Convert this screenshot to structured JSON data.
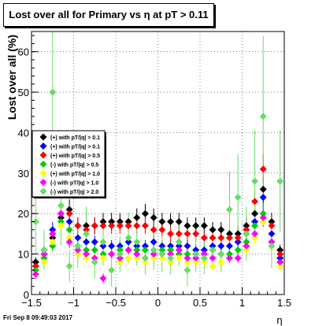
{
  "chart_data": {
    "type": "scatter",
    "title": "Lost over all for Primary vs   η at pT > 0.11",
    "xlabel": "η",
    "ylabel": "Lost over all (%)",
    "xlim": [
      -1.5,
      1.5
    ],
    "ylim": [
      0,
      65
    ],
    "x_ticks": [
      -1.5,
      -1,
      -0.5,
      0,
      0.5,
      1,
      1.5
    ],
    "x_tick_labels": [
      "−1.5",
      "−1",
      "−0.5",
      "0",
      "0.5",
      "1",
      "1.5"
    ],
    "y_ticks": [
      0,
      10,
      20,
      30,
      40,
      50,
      60
    ],
    "grid": true,
    "legend_position": "left-middle",
    "series": [
      {
        "name": "(+) with pT/|q| > 0.1",
        "color": "#000000",
        "marker": "diamond",
        "x": [
          -1.45,
          -1.35,
          -1.25,
          -1.15,
          -1.05,
          -0.95,
          -0.85,
          -0.75,
          -0.65,
          -0.55,
          -0.45,
          -0.35,
          -0.25,
          -0.15,
          -0.05,
          0.05,
          0.15,
          0.25,
          0.35,
          0.45,
          0.55,
          0.65,
          0.75,
          0.85,
          0.95,
          1.05,
          1.15,
          1.25,
          1.35,
          1.45
        ],
        "y": [
          8,
          10,
          14,
          19,
          21,
          17,
          17,
          17,
          18,
          18,
          18,
          18,
          19,
          20,
          19,
          18,
          18,
          18,
          17,
          17,
          17,
          16,
          16,
          15,
          15,
          17,
          20,
          26,
          18,
          11
        ]
      },
      {
        "name": "(+) with pT/|q| > 0.1",
        "color": "#0000ff",
        "marker": "diamond",
        "x": [
          -1.45,
          -1.35,
          -1.25,
          -1.15,
          -1.05,
          -0.95,
          -0.85,
          -0.75,
          -0.65,
          -0.55,
          -0.45,
          -0.35,
          -0.25,
          -0.15,
          -0.05,
          0.05,
          0.15,
          0.25,
          0.35,
          0.45,
          0.55,
          0.65,
          0.75,
          0.85,
          0.95,
          1.05,
          1.15,
          1.25,
          1.35,
          1.45
        ],
        "y": [
          7,
          11,
          16,
          20,
          18,
          14,
          13,
          13,
          12,
          12,
          12,
          13,
          12,
          12,
          13,
          12,
          12,
          12,
          12,
          11,
          11,
          12,
          12,
          12,
          13,
          15,
          18,
          24,
          15,
          9
        ]
      },
      {
        "name": "(+) with pT/|q| > 0.5",
        "color": "#ff0000",
        "marker": "diamond",
        "x": [
          -1.45,
          -1.35,
          -1.25,
          -1.15,
          -1.05,
          -0.95,
          -0.85,
          -0.75,
          -0.65,
          -0.55,
          -0.45,
          -0.35,
          -0.25,
          -0.15,
          -0.05,
          0.05,
          0.15,
          0.25,
          0.35,
          0.45,
          0.55,
          0.65,
          0.75,
          0.85,
          0.95,
          1.05,
          1.15,
          1.25,
          1.35,
          1.45
        ],
        "y": [
          7,
          9,
          15,
          20,
          20,
          17,
          16,
          17,
          17,
          17,
          17,
          17,
          17,
          17,
          16,
          16,
          15,
          15,
          15,
          15,
          14,
          14,
          14,
          14,
          14,
          16,
          23,
          31,
          17,
          10
        ]
      },
      {
        "name": "(-) with pT/|q| > 0.5",
        "color": "#00cc00",
        "marker": "diamond",
        "x": [
          -1.45,
          -1.35,
          -1.25,
          -1.15,
          -1.05,
          -0.95,
          -0.85,
          -0.75,
          -0.65,
          -0.55,
          -0.45,
          -0.35,
          -0.25,
          -0.15,
          -0.05,
          0.05,
          0.15,
          0.25,
          0.35,
          0.45,
          0.55,
          0.65,
          0.75,
          0.85,
          0.95,
          1.05,
          1.15,
          1.25,
          1.35,
          1.45
        ],
        "y": [
          6,
          9,
          12,
          18,
          16,
          12,
          11,
          11,
          10,
          10,
          11,
          11,
          11,
          11,
          10,
          11,
          11,
          10,
          10,
          10,
          10,
          11,
          10,
          10,
          11,
          13,
          17,
          20,
          13,
          8
        ]
      },
      {
        "name": "(+) with pT/|q| > 1.0",
        "color": "#ffff00",
        "marker": "diamond",
        "x": [
          -1.45,
          -1.35,
          -1.25,
          -1.15,
          -1.05,
          -0.95,
          -0.85,
          -0.75,
          -0.65,
          -0.55,
          -0.45,
          -0.35,
          -0.25,
          -0.15,
          -0.05,
          0.05,
          0.15,
          0.25,
          0.35,
          0.45,
          0.55,
          0.65,
          0.75,
          0.85,
          0.95,
          1.05,
          1.15,
          1.25,
          1.35,
          1.45
        ],
        "y": [
          5,
          8,
          13,
          17,
          14,
          10,
          9,
          9,
          9,
          10,
          8,
          9,
          9,
          8,
          9,
          9,
          8,
          9,
          8,
          8,
          8,
          7,
          8,
          9,
          9,
          11,
          14,
          18,
          12,
          7
        ]
      },
      {
        "name": "(-) with pT/|q| > 1.0",
        "color": "#ff00ff",
        "marker": "diamond",
        "x": [
          -1.45,
          -1.35,
          -1.25,
          -1.15,
          -1.05,
          -0.95,
          -0.85,
          -0.75,
          -0.65,
          -0.55,
          -0.45,
          -0.35,
          -0.25,
          -0.15,
          -0.05,
          0.05,
          0.15,
          0.25,
          0.35,
          0.45,
          0.55,
          0.65,
          0.75,
          0.85,
          0.95,
          1.05,
          1.15,
          1.25,
          1.35,
          1.45
        ],
        "y": [
          5,
          10,
          15,
          20,
          13,
          11,
          10,
          9,
          4,
          10,
          9,
          11,
          10,
          9,
          10,
          10,
          10,
          11,
          9,
          9,
          10,
          9,
          10,
          9,
          9,
          12,
          15,
          19,
          13,
          8
        ]
      },
      {
        "name": "(-) with pT/|q| > 2.0",
        "color": "#66dd66",
        "marker": "diamond",
        "x": [
          -1.45,
          -1.35,
          -1.25,
          -1.15,
          -1.05,
          -0.95,
          -0.85,
          -0.75,
          -0.65,
          -0.55,
          -0.45,
          -0.35,
          -0.25,
          -0.15,
          -0.05,
          0.05,
          0.15,
          0.25,
          0.35,
          0.45,
          0.55,
          0.65,
          0.75,
          0.85,
          0.95,
          1.05,
          1.15,
          1.25,
          1.35,
          1.45
        ],
        "y": [
          18,
          11,
          50,
          22,
          7,
          12,
          15,
          8,
          13,
          6,
          10,
          14,
          13,
          9,
          11,
          10,
          9,
          13,
          6,
          10,
          9,
          11,
          10,
          21,
          24,
          15,
          28,
          44,
          12,
          28
        ]
      }
    ]
  },
  "legend": [
    {
      "label": "(+) with pT/|q| > 0.1",
      "color": "#000000"
    },
    {
      "label": "(+) with pT/|q| > 0.1",
      "color": "#0000ff"
    },
    {
      "label": "(+) with pT/|q| > 0.5",
      "color": "#ff0000"
    },
    {
      "label": "(-) with pT/|q| > 0.5",
      "color": "#00cc00"
    },
    {
      "label": "(+) with pT/|q| > 1.0",
      "color": "#ffff00"
    },
    {
      "label": "(-) with pT/|q| > 1.0",
      "color": "#ff00ff"
    },
    {
      "label": "(-) with pT/|q| > 2.0",
      "color": "#66dd66"
    }
  ],
  "timestamp": "Fri Sep  8 09:49:03 2017"
}
